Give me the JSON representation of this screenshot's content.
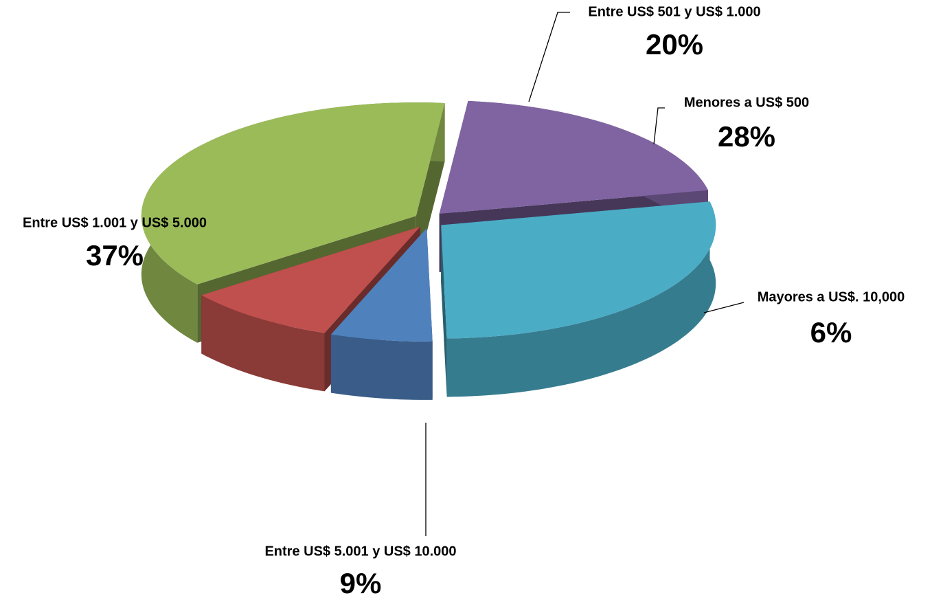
{
  "chart_data": {
    "type": "pie",
    "categories": [
      "Entre US$ 501 y US$ 1.000",
      "Menores a US$ 500",
      "Mayores a US$. 10,000",
      "Entre US$ 5.001 y US$ 10.000",
      "Entre US$ 1.001 y US$ 5.000"
    ],
    "values": [
      20,
      28,
      6,
      9,
      37
    ],
    "value_labels": [
      "20%",
      "28%",
      "6%",
      "9%",
      "37%"
    ],
    "colors": [
      "#8064a2",
      "#4bacc6",
      "#4f81bd",
      "#c0504d",
      "#9bbb59"
    ]
  }
}
